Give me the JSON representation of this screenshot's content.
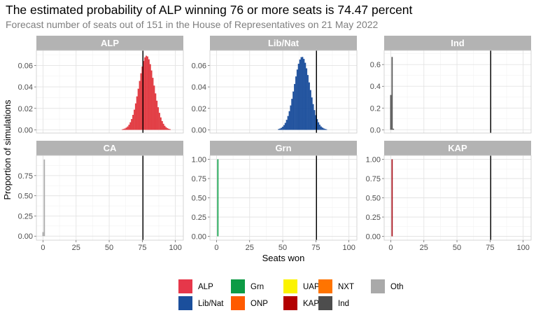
{
  "chart_data": {
    "type": "bar",
    "title": "The estimated probability of ALP winning 76 or more seats is 74.47 percent",
    "subtitle": "Forecast number of seats out of 151 in the House of Representatives on 21 May 2022",
    "xlabel": "Seats won",
    "ylabel": "Proportion of simulations",
    "xlim": [
      -5,
      106
    ],
    "x_ticks": [
      0,
      25,
      50,
      75,
      100
    ],
    "reference_line_x": 75.5,
    "grid": true,
    "legend_position": "bottom",
    "panels": [
      {
        "name": "ALP",
        "color": "#e13940",
        "ylim": [
          -0.003,
          0.074
        ],
        "y_ticks": [
          0.0,
          0.02,
          0.04,
          0.06
        ],
        "y_tick_labels": [
          "0.00",
          "0.02",
          "0.04",
          "0.06"
        ],
        "dist": "normal",
        "mean": 78.2,
        "sd": 5.7,
        "peak": 0.069
      },
      {
        "name": "Lib/Nat",
        "color": "#1c4f9c",
        "ylim": [
          -0.003,
          0.074
        ],
        "y_ticks": [
          0.0,
          0.02,
          0.04,
          0.06
        ],
        "y_tick_labels": [
          "0.00",
          "0.02",
          "0.04",
          "0.06"
        ],
        "dist": "normal",
        "mean": 64.6,
        "sd": 5.8,
        "peak": 0.068
      },
      {
        "name": "Ind",
        "color": "#555555",
        "ylim": [
          -0.03,
          0.73
        ],
        "y_ticks": [
          0.0,
          0.2,
          0.4,
          0.6
        ],
        "y_tick_labels": [
          "0.0",
          "0.2",
          "0.4",
          "0.6"
        ],
        "dist": "bars",
        "bars": [
          {
            "x": 0,
            "y": 0.32
          },
          {
            "x": 1,
            "y": 0.67
          },
          {
            "x": 2,
            "y": 0.01
          }
        ]
      },
      {
        "name": "CA",
        "color": "#aaaaaa",
        "ylim": [
          -0.05,
          1.0
        ],
        "y_ticks": [
          0.0,
          0.25,
          0.5,
          0.75
        ],
        "y_tick_labels": [
          "0.00",
          "0.25",
          "0.50",
          "0.75"
        ],
        "dist": "bars",
        "bars": [
          {
            "x": 0,
            "y": 0.05
          },
          {
            "x": 1,
            "y": 0.95
          }
        ]
      },
      {
        "name": "Grn",
        "color": "#10a24a",
        "ylim": [
          -0.05,
          1.05
        ],
        "y_ticks": [
          0.0,
          0.25,
          0.5,
          0.75,
          1.0
        ],
        "y_tick_labels": [
          "0.00",
          "0.25",
          "0.50",
          "0.75",
          "1.00"
        ],
        "dist": "bars",
        "bars": [
          {
            "x": 1,
            "y": 1.0
          }
        ]
      },
      {
        "name": "KAP",
        "color": "#a8101a",
        "ylim": [
          -0.05,
          1.05
        ],
        "y_ticks": [
          0.0,
          0.25,
          0.5,
          0.75,
          1.0
        ],
        "y_tick_labels": [
          "0.00",
          "0.25",
          "0.50",
          "0.75",
          "1.00"
        ],
        "dist": "bars",
        "bars": [
          {
            "x": 1,
            "y": 1.0
          }
        ]
      }
    ],
    "legend": [
      {
        "label": "ALP",
        "color": "#e6374a"
      },
      {
        "label": "Lib/Nat",
        "color": "#1b4f9c"
      },
      {
        "label": "Grn",
        "color": "#0d9b45"
      },
      {
        "label": "ONP",
        "color": "#ff5a00"
      },
      {
        "label": "UAP",
        "color": "#fbf300"
      },
      {
        "label": "KAP",
        "color": "#b30000"
      },
      {
        "label": "NXT",
        "color": "#ff7400"
      },
      {
        "label": "Ind",
        "color": "#4d4d4d"
      },
      {
        "label": "Oth",
        "color": "#a9a9a9"
      }
    ]
  }
}
